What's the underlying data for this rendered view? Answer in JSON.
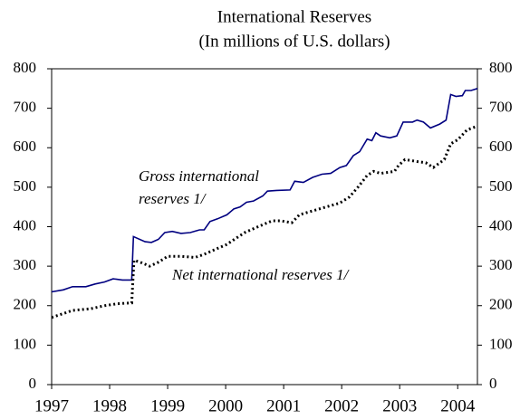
{
  "chart_data": {
    "type": "line",
    "title": "International Reserves",
    "subtitle": "(In millions of U.S. dollars)",
    "annotations": [
      "Gross international",
      "reserves 1/",
      "Net international reserves 1/"
    ],
    "xlim": [
      1997,
      2004.34
    ],
    "xticks": [
      1997,
      1998,
      1999,
      2000,
      2001,
      2002,
      2003,
      2004
    ],
    "ylim": [
      0,
      800
    ],
    "yticks": [
      0,
      100,
      200,
      300,
      400,
      500,
      600,
      700,
      800
    ],
    "y2lim": [
      0,
      800
    ],
    "y2ticks": [
      0,
      100,
      200,
      300,
      400,
      500,
      600,
      700,
      800
    ],
    "series": [
      {
        "name": "Gross international reserves",
        "color": "#000080",
        "style": "solid",
        "x": [
          1997.0,
          1997.2,
          1997.36,
          1997.59,
          1997.75,
          1997.91,
          1998.06,
          1998.22,
          1998.38,
          1998.41,
          1998.61,
          1998.72,
          1998.84,
          1998.95,
          1999.08,
          1999.23,
          1999.39,
          1999.55,
          1999.63,
          1999.73,
          1999.86,
          2000.02,
          2000.14,
          2000.25,
          2000.36,
          2000.48,
          2000.64,
          2000.72,
          2000.88,
          2001.11,
          2001.19,
          2001.34,
          2001.5,
          2001.66,
          2001.81,
          2001.97,
          2002.08,
          2002.2,
          2002.31,
          2002.44,
          2002.52,
          2002.59,
          2002.67,
          2002.83,
          2002.95,
          2003.06,
          2003.22,
          2003.3,
          2003.41,
          2003.53,
          2003.69,
          2003.8,
          2003.88,
          2003.97,
          2004.08,
          2004.13,
          2004.23,
          2004.34
        ],
        "values": [
          235,
          240,
          248,
          248,
          255,
          260,
          268,
          265,
          265,
          375,
          362,
          360,
          368,
          385,
          388,
          383,
          385,
          392,
          392,
          413,
          420,
          430,
          445,
          450,
          462,
          465,
          478,
          490,
          492,
          493,
          515,
          512,
          525,
          533,
          535,
          550,
          555,
          580,
          590,
          622,
          618,
          638,
          630,
          625,
          630,
          665,
          665,
          670,
          665,
          650,
          660,
          670,
          735,
          730,
          732,
          745,
          745,
          750
        ]
      },
      {
        "name": "Net international reserves",
        "color": "#000000",
        "style": "dotted",
        "x": [
          1997.0,
          1997.2,
          1997.36,
          1997.67,
          1997.91,
          1998.14,
          1998.38,
          1998.42,
          1998.53,
          1998.69,
          1998.84,
          1999.0,
          1999.23,
          1999.47,
          1999.63,
          1999.86,
          2000.02,
          2000.17,
          2000.33,
          2000.48,
          2000.64,
          2000.8,
          2000.95,
          2001.14,
          2001.27,
          2001.5,
          2001.73,
          2001.97,
          2002.13,
          2002.28,
          2002.44,
          2002.55,
          2002.67,
          2002.91,
          2002.98,
          2003.09,
          2003.3,
          2003.45,
          2003.58,
          2003.77,
          2003.88,
          2004.0,
          2004.16,
          2004.34
        ],
        "values": [
          170,
          180,
          188,
          192,
          200,
          205,
          207,
          315,
          310,
          300,
          310,
          325,
          325,
          322,
          330,
          345,
          355,
          370,
          385,
          395,
          405,
          415,
          415,
          410,
          430,
          440,
          450,
          460,
          475,
          500,
          530,
          540,
          535,
          540,
          555,
          570,
          565,
          562,
          550,
          570,
          610,
          620,
          645,
          655
        ]
      }
    ]
  }
}
